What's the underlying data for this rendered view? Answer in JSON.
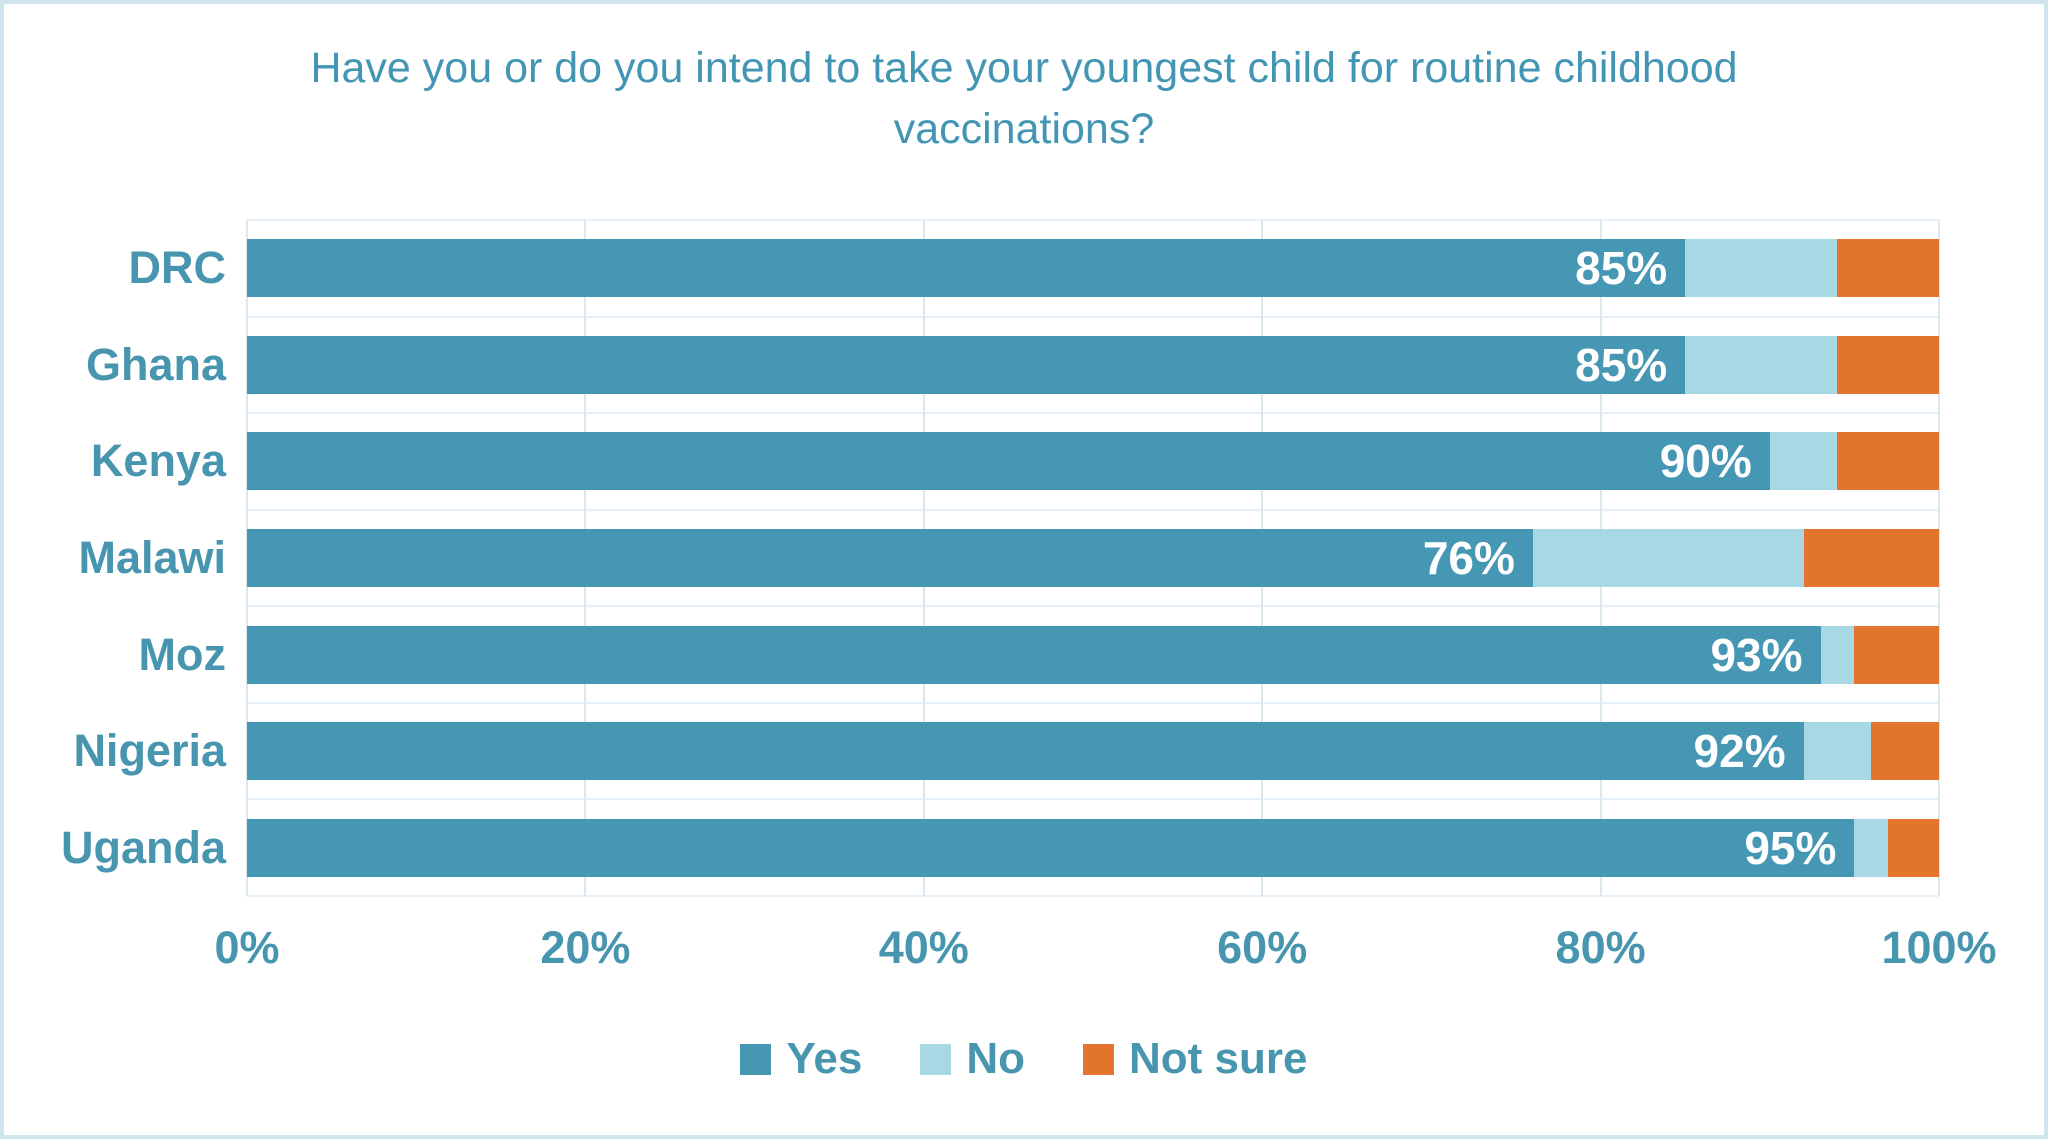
{
  "card": {
    "background": "#ffffff",
    "border_color": "#cfe4ec"
  },
  "colors": {
    "yes": "#4597b3",
    "no": "#a9d8e5",
    "not_sure": "#e3742e",
    "text_teal": "#4795af",
    "gridline": "#d9e8f1",
    "bar_value_text": "#ffffff"
  },
  "chart_data": {
    "type": "bar",
    "orientation": "horizontal-stacked",
    "title": "Have you or do you intend to take your youngest child for routine childhood vaccinations?",
    "categories": [
      "DRC",
      "Ghana",
      "Kenya",
      "Malawi",
      "Moz",
      "Nigeria",
      "Uganda"
    ],
    "series": [
      {
        "name": "Yes",
        "color": "#4597b3",
        "values": [
          85,
          85,
          90,
          76,
          93,
          92,
          95
        ]
      },
      {
        "name": "No",
        "color": "#a9d8e5",
        "values": [
          9,
          9,
          4,
          16,
          2,
          4,
          2
        ]
      },
      {
        "name": "Not sure",
        "color": "#e3742e",
        "values": [
          6,
          6,
          6,
          8,
          5,
          4,
          3
        ]
      }
    ],
    "bar_labels": [
      "85%",
      "85%",
      "90%",
      "76%",
      "93%",
      "92%",
      "95%"
    ],
    "x_ticks": [
      {
        "label": "0%",
        "value": 0
      },
      {
        "label": "20%",
        "value": 20
      },
      {
        "label": "40%",
        "value": 40
      },
      {
        "label": "60%",
        "value": 60
      },
      {
        "label": "80%",
        "value": 80
      },
      {
        "label": "100%",
        "value": 100
      }
    ],
    "xlim": [
      0,
      100
    ],
    "grid": "vertical-major-and-category-boundaries",
    "legend_position": "bottom",
    "legend": [
      "Yes",
      "No",
      "Not sure"
    ]
  }
}
